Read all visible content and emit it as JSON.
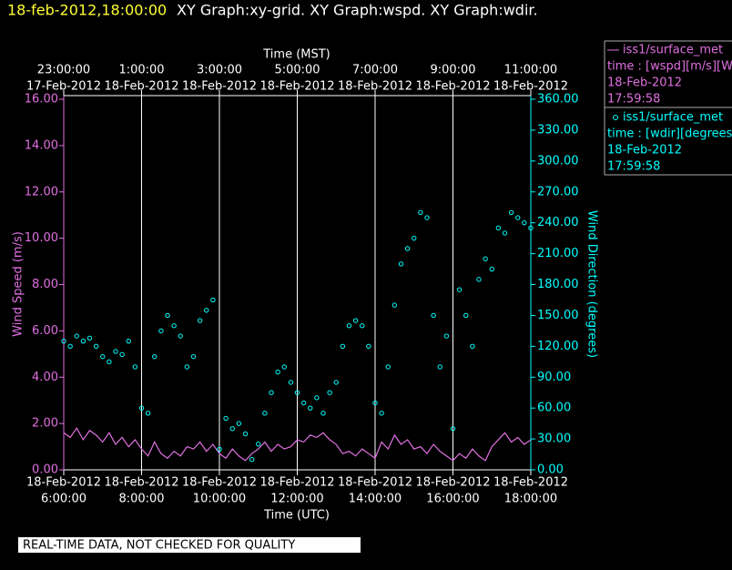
{
  "chart_data": {
    "type": "line-scatter",
    "timestamp": "18-feb-2012,18:00:00",
    "title": "XY Graph:xy-grid.  XY Graph:wspd.  XY Graph:wdir.",
    "xlabel": "Time (UTC)",
    "x2label": "Time (MST)",
    "ylabel": "Wind Speed (m/s)",
    "y2label": "Wind Direction (degrees)",
    "footer": "REAL-TIME DATA, NOT CHECKED FOR QUALITY",
    "grid": true,
    "xlim": [
      "2012-02-18T06:00",
      "2012-02-18T18:00"
    ],
    "xticks": [
      {
        "value": "2012-02-18T06:00",
        "label": "6:00:00",
        "date": "18-Feb-2012"
      },
      {
        "value": "2012-02-18T08:00",
        "label": "8:00:00",
        "date": "18-Feb-2012"
      },
      {
        "value": "2012-02-18T10:00",
        "label": "10:00:00",
        "date": "18-Feb-2012"
      },
      {
        "value": "2012-02-18T12:00",
        "label": "12:00:00",
        "date": "18-Feb-2012"
      },
      {
        "value": "2012-02-18T14:00",
        "label": "14:00:00",
        "date": "18-Feb-2012"
      },
      {
        "value": "2012-02-18T16:00",
        "label": "16:00:00",
        "date": "18-Feb-2012"
      },
      {
        "value": "2012-02-18T18:00",
        "label": "18:00:00",
        "date": "18-Feb-2012"
      }
    ],
    "x2ticks": [
      {
        "value": "2012-02-18T06:00",
        "label": "23:00:00",
        "date": "17-Feb-2012"
      },
      {
        "value": "2012-02-18T08:00",
        "label": "1:00:00",
        "date": "18-Feb-2012"
      },
      {
        "value": "2012-02-18T10:00",
        "label": "3:00:00",
        "date": "18-Feb-2012"
      },
      {
        "value": "2012-02-18T12:00",
        "label": "5:00:00",
        "date": "18-Feb-2012"
      },
      {
        "value": "2012-02-18T14:00",
        "label": "7:00:00",
        "date": "18-Feb-2012"
      },
      {
        "value": "2012-02-18T16:00",
        "label": "9:00:00",
        "date": "18-Feb-2012"
      },
      {
        "value": "2012-02-18T18:00",
        "label": "11:00:00",
        "date": "18-Feb-2012"
      }
    ],
    "ylim": [
      0,
      16
    ],
    "yticks": [
      {
        "value": 0,
        "label": "0.00"
      },
      {
        "value": 2,
        "label": "2.00"
      },
      {
        "value": 4,
        "label": "4.00"
      },
      {
        "value": 6,
        "label": "6.00"
      },
      {
        "value": 8,
        "label": "8.00"
      },
      {
        "value": 10,
        "label": "10.00"
      },
      {
        "value": 12,
        "label": "12.00"
      },
      {
        "value": 14,
        "label": "14.00"
      },
      {
        "value": 16,
        "label": "16.00"
      }
    ],
    "y2lim": [
      0,
      360
    ],
    "y2ticks": [
      {
        "value": 0,
        "label": "0.00"
      },
      {
        "value": 30,
        "label": "30.00"
      },
      {
        "value": 60,
        "label": "60.00"
      },
      {
        "value": 90,
        "label": "90.00"
      },
      {
        "value": 120,
        "label": "120.00"
      },
      {
        "value": 150,
        "label": "150.00"
      },
      {
        "value": 180,
        "label": "180.00"
      },
      {
        "value": 210,
        "label": "210.00"
      },
      {
        "value": 240,
        "label": "240.00"
      },
      {
        "value": 270,
        "label": "270.00"
      },
      {
        "value": 300,
        "label": "300.00"
      },
      {
        "value": 330,
        "label": "330.00"
      },
      {
        "value": 360,
        "label": "360.00"
      }
    ],
    "x": [
      "2012-02-18T06:00",
      "2012-02-18T06:10",
      "2012-02-18T06:20",
      "2012-02-18T06:30",
      "2012-02-18T06:40",
      "2012-02-18T06:50",
      "2012-02-18T07:00",
      "2012-02-18T07:10",
      "2012-02-18T07:20",
      "2012-02-18T07:30",
      "2012-02-18T07:40",
      "2012-02-18T07:50",
      "2012-02-18T08:00",
      "2012-02-18T08:10",
      "2012-02-18T08:20",
      "2012-02-18T08:30",
      "2012-02-18T08:40",
      "2012-02-18T08:50",
      "2012-02-18T09:00",
      "2012-02-18T09:10",
      "2012-02-18T09:20",
      "2012-02-18T09:30",
      "2012-02-18T09:40",
      "2012-02-18T09:50",
      "2012-02-18T10:00",
      "2012-02-18T10:10",
      "2012-02-18T10:20",
      "2012-02-18T10:30",
      "2012-02-18T10:40",
      "2012-02-18T10:50",
      "2012-02-18T11:00",
      "2012-02-18T11:10",
      "2012-02-18T11:20",
      "2012-02-18T11:30",
      "2012-02-18T11:40",
      "2012-02-18T11:50",
      "2012-02-18T12:00",
      "2012-02-18T12:10",
      "2012-02-18T12:20",
      "2012-02-18T12:30",
      "2012-02-18T12:40",
      "2012-02-18T12:50",
      "2012-02-18T13:00",
      "2012-02-18T13:10",
      "2012-02-18T13:20",
      "2012-02-18T13:30",
      "2012-02-18T13:40",
      "2012-02-18T13:50",
      "2012-02-18T14:00",
      "2012-02-18T14:10",
      "2012-02-18T14:20",
      "2012-02-18T14:30",
      "2012-02-18T14:40",
      "2012-02-18T14:50",
      "2012-02-18T15:00",
      "2012-02-18T15:10",
      "2012-02-18T15:20",
      "2012-02-18T15:30",
      "2012-02-18T15:40",
      "2012-02-18T15:50",
      "2012-02-18T16:00",
      "2012-02-18T16:10",
      "2012-02-18T16:20",
      "2012-02-18T16:30",
      "2012-02-18T16:40",
      "2012-02-18T16:50",
      "2012-02-18T17:00",
      "2012-02-18T17:10",
      "2012-02-18T17:20",
      "2012-02-18T17:30",
      "2012-02-18T17:40",
      "2012-02-18T17:50",
      "2012-02-18T18:00"
    ],
    "series": [
      {
        "name": "iss1/surface_met",
        "kind": "line",
        "color": "#e070e0",
        "axis": "y",
        "legend_variable": "time : [wspd][m/s][Wind",
        "legend_date": "18-Feb-2012",
        "legend_time": "17:59:58",
        "values": [
          1.6,
          1.4,
          1.8,
          1.3,
          1.7,
          1.5,
          1.2,
          1.6,
          1.1,
          1.4,
          1.0,
          1.3,
          0.9,
          0.6,
          1.2,
          0.7,
          0.5,
          0.8,
          0.6,
          1.0,
          0.9,
          1.2,
          0.8,
          1.1,
          0.7,
          0.5,
          0.9,
          0.6,
          0.4,
          0.7,
          0.9,
          1.2,
          0.8,
          1.1,
          0.9,
          1.0,
          1.3,
          1.2,
          1.5,
          1.4,
          1.6,
          1.3,
          1.1,
          0.7,
          0.8,
          0.6,
          0.9,
          0.7,
          0.5,
          1.2,
          0.9,
          1.5,
          1.1,
          1.3,
          0.9,
          1.0,
          0.7,
          1.1,
          0.8,
          0.6,
          0.4,
          0.7,
          0.5,
          0.9,
          0.6,
          0.4,
          1.0,
          1.3,
          1.6,
          1.2,
          1.4,
          1.1,
          1.3
        ]
      },
      {
        "name": "iss1/surface_met",
        "kind": "scatter",
        "color": "#00ffff",
        "axis": "y2",
        "legend_variable": "time : [wdir][degrees][V",
        "legend_date": "18-Feb-2012",
        "legend_time": "17:59:58",
        "values": [
          125,
          120,
          130,
          125,
          128,
          120,
          110,
          105,
          115,
          112,
          125,
          100,
          60,
          55,
          110,
          135,
          150,
          140,
          130,
          100,
          110,
          145,
          155,
          165,
          20,
          50,
          40,
          45,
          35,
          10,
          25,
          55,
          75,
          95,
          100,
          85,
          75,
          65,
          60,
          70,
          55,
          75,
          85,
          120,
          140,
          145,
          140,
          120,
          65,
          55,
          100,
          160,
          200,
          215,
          225,
          250,
          245,
          150,
          100,
          130,
          40,
          175,
          150,
          120,
          185,
          205,
          195,
          235,
          230,
          250,
          245,
          240,
          235
        ]
      }
    ]
  }
}
